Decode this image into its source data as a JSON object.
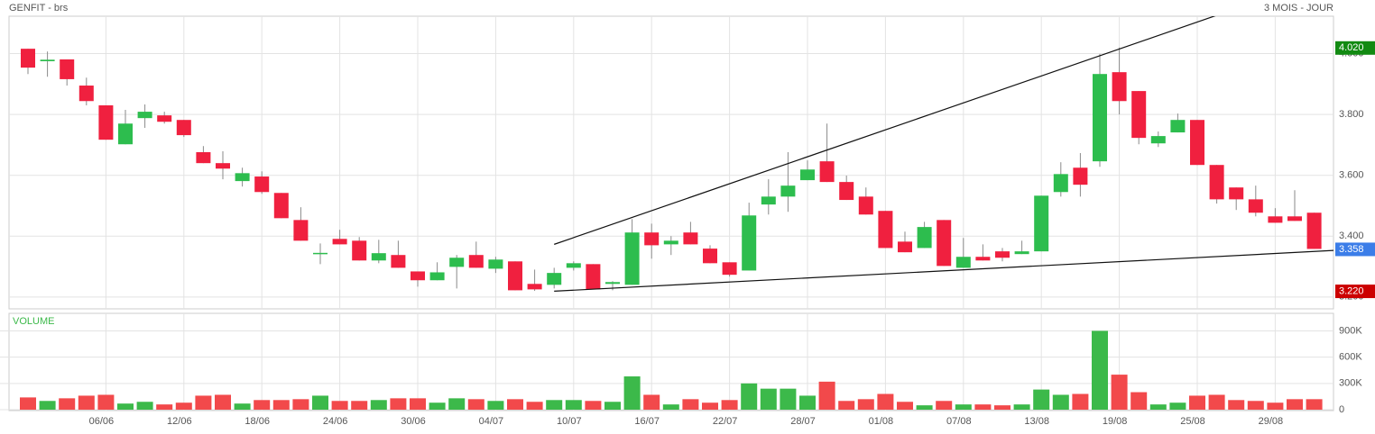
{
  "chart_data": {
    "type": "candlestick",
    "title": "GENFIT - brs",
    "subtitle": "3 MOIS - JOUR",
    "volume_title": "VOLUME",
    "categories": [
      null,
      null,
      null,
      null,
      "06/06",
      null,
      null,
      null,
      "12/06",
      null,
      null,
      null,
      "18/06",
      null,
      null,
      null,
      "24/06",
      null,
      null,
      null,
      "30/06",
      null,
      null,
      null,
      "04/07",
      null,
      null,
      null,
      "10/07",
      null,
      null,
      null,
      "16/07",
      null,
      null,
      null,
      "22/07",
      null,
      null,
      null,
      "28/07",
      null,
      null,
      null,
      "01/08",
      null,
      null,
      null,
      "07/08",
      null,
      null,
      null,
      "13/08",
      null,
      null,
      null,
      "19/08",
      null,
      null,
      null,
      "25/08",
      null,
      null,
      null,
      "29/08",
      null,
      null
    ],
    "open": [
      4.016,
      3.975,
      3.981,
      3.895,
      3.83,
      3.702,
      3.788,
      3.797,
      3.782,
      3.676,
      3.64,
      3.581,
      3.596,
      3.542,
      3.453,
      3.341,
      3.391,
      3.385,
      3.32,
      3.338,
      3.284,
      3.255,
      3.299,
      3.338,
      3.293,
      3.317,
      3.243,
      3.24,
      3.296,
      3.308,
      3.243,
      3.24,
      3.412,
      3.373,
      3.412,
      3.359,
      3.314,
      3.287,
      3.504,
      3.53,
      3.584,
      3.646,
      3.578,
      3.53,
      3.483,
      3.382,
      3.361,
      3.453,
      3.296,
      3.332,
      3.35,
      3.341,
      3.35,
      3.545,
      3.625,
      3.646,
      3.939,
      3.877,
      3.705,
      3.741,
      3.782,
      3.634,
      3.56,
      3.521,
      3.465,
      3.465,
      3.477
    ],
    "high": [
      4.016,
      4.007,
      3.981,
      3.921,
      3.83,
      3.815,
      3.833,
      3.809,
      3.782,
      3.696,
      3.679,
      3.625,
      3.613,
      3.542,
      3.495,
      3.376,
      3.421,
      3.397,
      3.388,
      3.385,
      3.284,
      3.314,
      3.338,
      3.382,
      3.332,
      3.317,
      3.29,
      3.296,
      3.317,
      3.308,
      3.252,
      3.456,
      3.441,
      3.4,
      3.447,
      3.37,
      3.314,
      3.51,
      3.587,
      3.676,
      3.649,
      3.77,
      3.599,
      3.56,
      3.483,
      3.415,
      3.447,
      3.453,
      3.394,
      3.373,
      3.361,
      3.385,
      3.533,
      3.643,
      3.673,
      3.999,
      4.02,
      3.877,
      3.744,
      3.803,
      3.782,
      3.634,
      3.56,
      3.566,
      3.492,
      3.551,
      3.477
    ],
    "low": [
      3.933,
      3.924,
      3.895,
      3.83,
      3.717,
      3.702,
      3.756,
      3.77,
      3.726,
      3.64,
      3.587,
      3.563,
      3.539,
      3.459,
      3.385,
      3.308,
      3.373,
      3.32,
      3.311,
      3.296,
      3.234,
      3.255,
      3.228,
      3.296,
      3.279,
      3.222,
      3.22,
      3.228,
      3.287,
      3.225,
      3.222,
      3.24,
      3.326,
      3.338,
      3.373,
      3.311,
      3.267,
      3.287,
      3.471,
      3.48,
      3.584,
      3.578,
      3.519,
      3.471,
      3.361,
      3.347,
      3.361,
      3.302,
      3.296,
      3.32,
      3.317,
      3.341,
      3.35,
      3.53,
      3.53,
      3.628,
      3.8,
      3.702,
      3.693,
      3.741,
      3.634,
      3.507,
      3.486,
      3.465,
      3.444,
      3.45,
      3.358
    ],
    "close": [
      3.954,
      3.98,
      3.916,
      3.844,
      3.717,
      3.77,
      3.809,
      3.776,
      3.732,
      3.64,
      3.622,
      3.607,
      3.545,
      3.459,
      3.385,
      3.345,
      3.373,
      3.32,
      3.344,
      3.296,
      3.255,
      3.281,
      3.329,
      3.296,
      3.323,
      3.222,
      3.225,
      3.279,
      3.311,
      3.225,
      3.249,
      3.412,
      3.37,
      3.385,
      3.373,
      3.311,
      3.273,
      3.468,
      3.53,
      3.566,
      3.619,
      3.578,
      3.519,
      3.471,
      3.361,
      3.347,
      3.43,
      3.302,
      3.332,
      3.32,
      3.329,
      3.35,
      3.533,
      3.604,
      3.569,
      3.933,
      3.844,
      3.723,
      3.729,
      3.782,
      3.634,
      3.521,
      3.521,
      3.477,
      3.444,
      3.45,
      3.358
    ],
    "volume": [
      140000,
      100000,
      130000,
      160000,
      170000,
      70000,
      90000,
      60000,
      80000,
      160000,
      170000,
      70000,
      110000,
      110000,
      120000,
      160000,
      100000,
      100000,
      110000,
      130000,
      130000,
      80000,
      130000,
      120000,
      100000,
      120000,
      90000,
      110000,
      110000,
      100000,
      90000,
      380000,
      170000,
      60000,
      120000,
      80000,
      110000,
      300000,
      240000,
      240000,
      160000,
      320000,
      100000,
      120000,
      180000,
      90000,
      50000,
      100000,
      60000,
      60000,
      50000,
      60000,
      230000,
      170000,
      180000,
      900000,
      400000,
      200000,
      60000,
      80000,
      160000,
      170000,
      110000,
      100000,
      80000,
      120000,
      120000
    ],
    "up_color": "#2dbd4e",
    "down_color": "#f0203f",
    "ylim": [
      3.161,
      4.123
    ],
    "yticks": [
      {
        "value": 3.2,
        "label": "3.200"
      },
      {
        "value": 3.4,
        "label": "3.400"
      },
      {
        "value": 3.6,
        "label": "3.600"
      },
      {
        "value": 3.8,
        "label": "3.800"
      },
      {
        "value": 4.0,
        "label": "4.000"
      }
    ],
    "volume_ylim": [
      0,
      1100000
    ],
    "volume_yticks": [
      0,
      {
        "value": 300000,
        "label": "300K"
      },
      {
        "value": 600000,
        "label": "600K"
      },
      {
        "value": 900000,
        "label": "900K"
      }
    ],
    "grid": true,
    "trendlines": [
      {
        "x": [
          27,
          61
        ],
        "y": [
          3.373,
          4.126
        ]
      },
      {
        "x": [
          27,
          67
        ],
        "y": [
          3.219,
          3.353
        ]
      }
    ],
    "badges": [
      {
        "value": 4.02,
        "label": "4.020",
        "color": "#128a12"
      },
      {
        "value": 3.358,
        "label": "3.358",
        "color": "#3b7de8"
      },
      {
        "value": 3.22,
        "label": "3.220",
        "color": "#cc0000"
      }
    ]
  }
}
